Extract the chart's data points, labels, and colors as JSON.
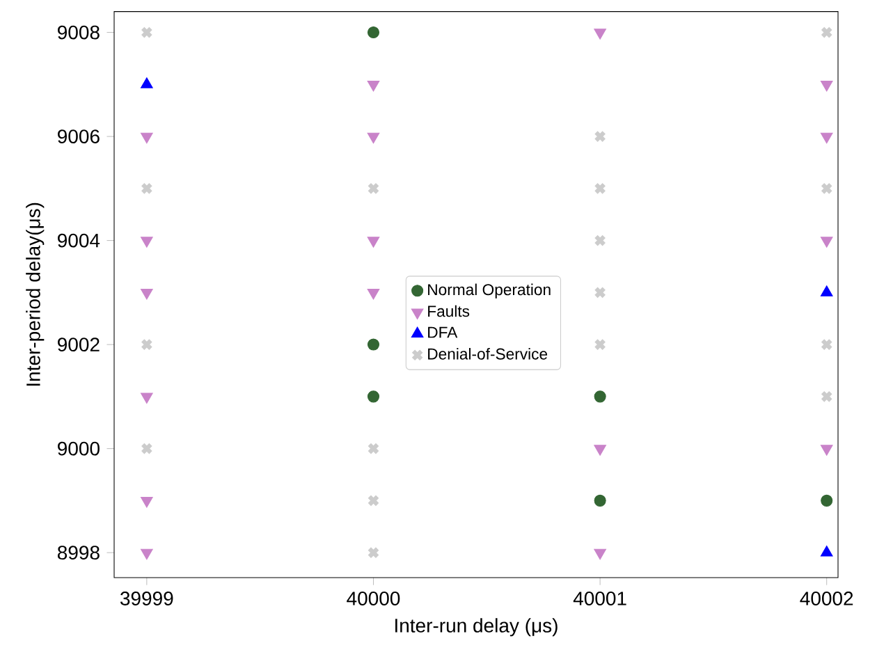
{
  "chart_data": {
    "type": "scatter",
    "xlabel": "Inter-run delay (μs)",
    "ylabel": "Inter-period delay(μs)",
    "xlim": [
      39998.856,
      40002.05
    ],
    "ylim": [
      8997.52,
      9008.4
    ],
    "xticks": [
      39999,
      40000,
      40001,
      40002
    ],
    "yticks": [
      8998,
      9000,
      9002,
      9004,
      9006,
      9008
    ],
    "legend": "left",
    "grid": false,
    "series": [
      {
        "name": "Normal Operation",
        "color": "#336633",
        "marker": "circle",
        "x": [
          40000,
          40000,
          40000,
          40001,
          40001,
          40002
        ],
        "values": [
          9008,
          9002,
          9001,
          9001,
          8999,
          8999
        ]
      },
      {
        "name": "Faults",
        "color": "#c983c9",
        "marker": "triangle-down",
        "x": [
          39999,
          39999,
          39999,
          39999,
          39999,
          39999,
          40000,
          40000,
          40000,
          40000,
          40001,
          40001,
          40001,
          40002,
          40002,
          40002,
          40002
        ],
        "values": [
          9006,
          9004,
          9003,
          9001,
          8999,
          8998,
          9007,
          9006,
          9004,
          9003,
          9008,
          9000,
          8998,
          9007,
          9006,
          9004,
          9000
        ]
      },
      {
        "name": "DFA",
        "color": "#0000ff",
        "marker": "triangle",
        "x": [
          39999,
          40002,
          40002
        ],
        "values": [
          9007,
          9003,
          8998
        ]
      },
      {
        "name": "Denial-of-Service",
        "color": "#cccccc",
        "marker": "x",
        "x": [
          39999,
          39999,
          39999,
          39999,
          40000,
          40000,
          40000,
          40000,
          40001,
          40001,
          40001,
          40001,
          40001,
          40002,
          40002,
          40002,
          40002
        ],
        "values": [
          9008,
          9005,
          9002,
          9000,
          9005,
          9000,
          8999,
          8998,
          9006,
          9005,
          9004,
          9003,
          9002,
          9008,
          9005,
          9002,
          9001
        ]
      }
    ]
  }
}
